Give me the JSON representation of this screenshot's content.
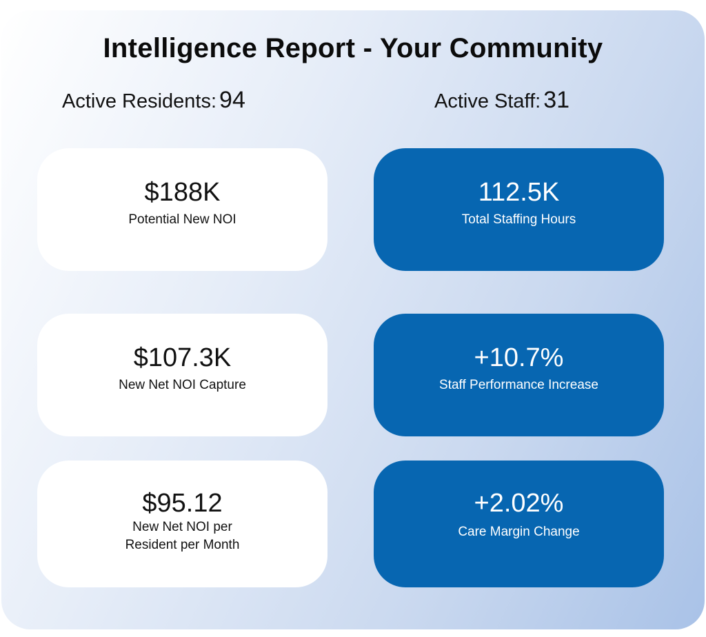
{
  "report": {
    "title": "Intelligence Report - Your Community",
    "residents_label": "Active Residents:",
    "residents_value": "94",
    "staff_label": "Active Staff:",
    "staff_value": "31"
  },
  "cards": {
    "potential_noi": {
      "value": "$188K",
      "label": "Potential New NOI"
    },
    "staffing_hours": {
      "value": "112.5K",
      "label": "Total Staffing Hours"
    },
    "net_noi_capture": {
      "value": "$107.3K",
      "label": "New Net NOI Capture"
    },
    "staff_performance": {
      "value": "+10.7%",
      "label": "Staff Performance Increase"
    },
    "noi_per_resident": {
      "value": "$95.12",
      "label_line1": "New Net NOI per",
      "label_line2": "Resident per Month"
    },
    "care_margin": {
      "value": "+2.02%",
      "label": "Care Margin Change"
    }
  },
  "colors": {
    "card_blue": "#0766b1",
    "card_white": "#ffffff",
    "panel_gradient_end": "#a9c2e7"
  }
}
